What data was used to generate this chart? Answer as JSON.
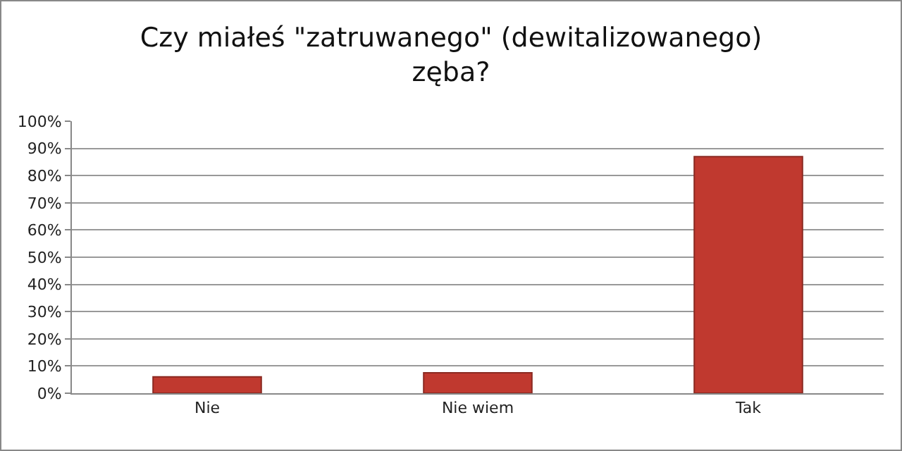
{
  "chart_data": {
    "type": "bar",
    "title": "Czy miałeś \"zatruwanego\" (dewitalizowanego) zęba?",
    "categories": [
      "Nie",
      "Nie wiem",
      "Tak"
    ],
    "values": [
      6,
      7.5,
      87
    ],
    "color": "#c0392f",
    "ylim": [
      0,
      100
    ],
    "yticks": [
      {
        "value": 0,
        "label": "0%"
      },
      {
        "value": 10,
        "label": "10%"
      },
      {
        "value": 20,
        "label": "20%"
      },
      {
        "value": 30,
        "label": "30%"
      },
      {
        "value": 40,
        "label": "40%"
      },
      {
        "value": 50,
        "label": "50%"
      },
      {
        "value": 60,
        "label": "60%"
      },
      {
        "value": 70,
        "label": "70%"
      },
      {
        "value": 80,
        "label": "80%"
      },
      {
        "value": 90,
        "label": "90%"
      },
      {
        "value": 100,
        "label": "100%"
      }
    ],
    "grid": "y"
  }
}
